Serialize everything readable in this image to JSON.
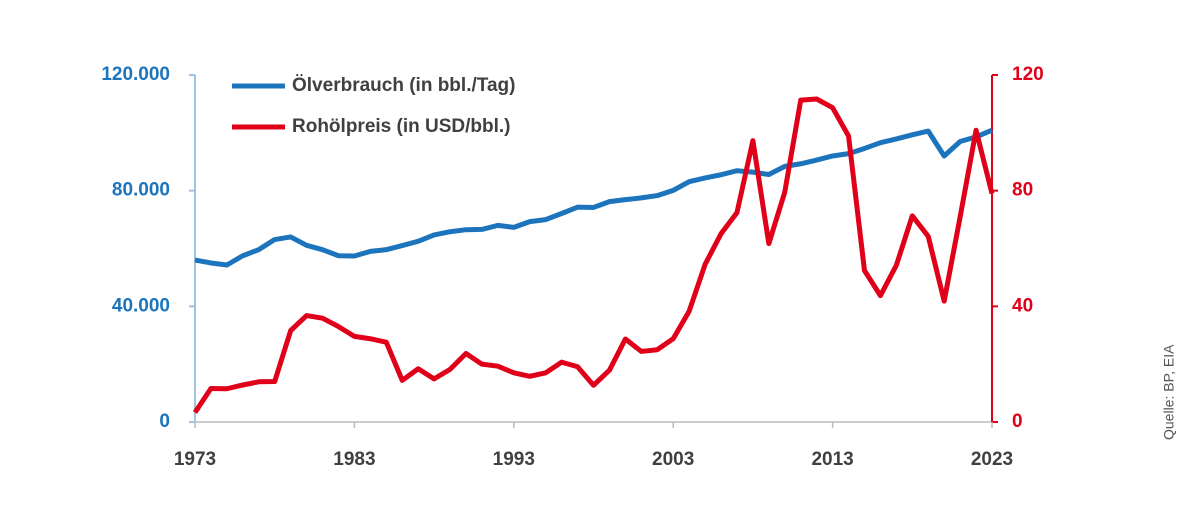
{
  "chart_data": {
    "type": "line",
    "source": "Quelle: BP, EIA",
    "x": [
      1973,
      1974,
      1975,
      1976,
      1977,
      1978,
      1979,
      1980,
      1981,
      1982,
      1983,
      1984,
      1985,
      1986,
      1987,
      1988,
      1989,
      1990,
      1991,
      1992,
      1993,
      1994,
      1995,
      1996,
      1997,
      1998,
      1999,
      2000,
      2001,
      2002,
      2003,
      2004,
      2005,
      2006,
      2007,
      2008,
      2009,
      2010,
      2011,
      2012,
      2013,
      2014,
      2015,
      2016,
      2017,
      2018,
      2019,
      2020,
      2021,
      2022,
      2023
    ],
    "xlim": [
      1973,
      2023
    ],
    "xticks": [
      1973,
      1983,
      1993,
      2003,
      2013,
      2023
    ],
    "ylim": [
      0,
      120000
    ],
    "yticks": [
      0,
      {
        "value": 40000,
        "label": "40.000"
      },
      {
        "value": 80000,
        "label": "80.000"
      },
      {
        "value": 120000,
        "label": "120.000"
      }
    ],
    "y2lim": [
      0,
      120
    ],
    "y2ticks": [
      0,
      40,
      80,
      120
    ],
    "y_color": "#1c75bc",
    "y2_color": "#e0001a",
    "legend": "top-left",
    "series": [
      {
        "name": "Ölverbrauch (in bbl./Tag)",
        "color": "#1c75bc",
        "values": [
          56000,
          55000,
          54300,
          57500,
          59600,
          63100,
          64000,
          61100,
          59600,
          57500,
          57400,
          59000,
          59600,
          61000,
          62500,
          64700,
          65800,
          66500,
          66600,
          68000,
          67300,
          69300,
          70000,
          72100,
          74300,
          74200,
          76200,
          76900,
          77500,
          78300,
          80100,
          83100,
          84400,
          85500,
          86900,
          86400,
          85600,
          88400,
          89300,
          90600,
          92000,
          92800,
          94600,
          96600,
          97900,
          99300,
          100600,
          92000,
          97000,
          98600,
          100900
        ]
      },
      {
        "name": "Rohölpreis (in USD/bbl.)",
        "color": "#e0001a",
        "axis": "y2",
        "values": [
          3.3,
          11.6,
          11.5,
          12.8,
          13.9,
          14.0,
          31.6,
          36.8,
          35.9,
          33.0,
          29.6,
          28.8,
          27.6,
          14.4,
          18.4,
          14.9,
          18.2,
          23.7,
          20.0,
          19.3,
          17.0,
          15.8,
          17.0,
          20.7,
          19.1,
          12.7,
          17.9,
          28.7,
          24.4,
          25.0,
          28.8,
          38.3,
          54.5,
          65.1,
          72.4,
          97.3,
          61.7,
          79.5,
          111.3,
          111.7,
          108.7,
          98.9,
          52.4,
          43.7,
          54.2,
          71.3,
          64.2,
          41.8,
          70.9,
          100.9,
          79.0
        ]
      }
    ]
  }
}
